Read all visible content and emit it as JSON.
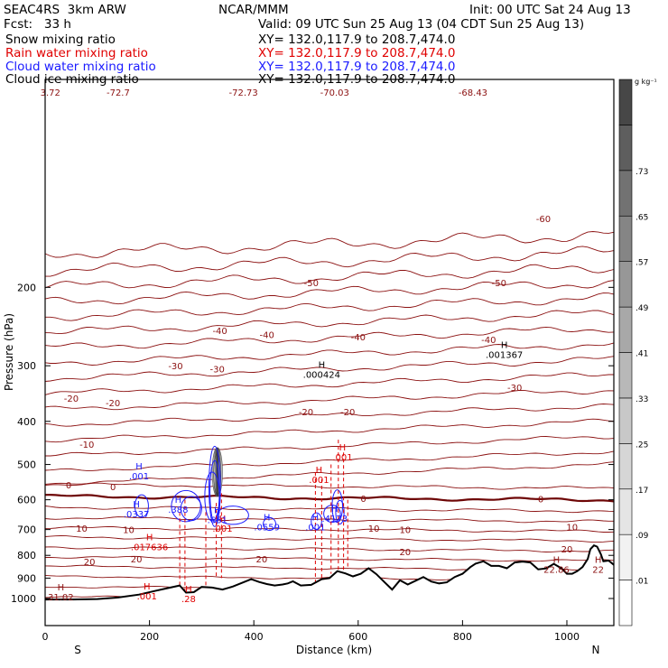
{
  "header": {
    "model": "SEAC4RS  3km ARW",
    "org": "NCAR/MMM",
    "init": "Init: 00 UTC Sat 24 Aug 13",
    "fcst": "Fcst:   33 h",
    "valid": "Valid: 09 UTC Sun 25 Aug 13 (04 CDT Sun 25 Aug 13)",
    "fields": [
      {
        "label": "Snow mixing ratio",
        "xy": "XY= 132.0,117.9 to 208.7,474.0",
        "color": "#000000"
      },
      {
        "label": "Rain water mixing ratio",
        "xy": "XY= 132.0,117.9 to 208.7,474.0",
        "color": "#e00000"
      },
      {
        "label": "Cloud water mixing ratio",
        "xy": "XY= 132.0,117.9 to 208.7,474.0",
        "color": "#1a1aff"
      },
      {
        "label": "Cloud ice mixing ratio",
        "xy": "XY= 132.0,117.9 to 208.7,474.0",
        "color": "#000000"
      }
    ]
  },
  "chart_data": {
    "type": "cross-section",
    "xlabel": "Distance (km)",
    "ylabel": "Pressure (hPa)",
    "xlim": [
      0,
      1090
    ],
    "ylim": [
      1050,
      100
    ],
    "y_log": true,
    "x_ticks": [
      "0",
      "200",
      "400",
      "600",
      "800",
      "1000"
    ],
    "y_ticks": [
      "200",
      "300",
      "400",
      "500",
      "600",
      "700",
      "800",
      "900",
      "1000"
    ],
    "ends": {
      "left": "S",
      "right": "N"
    },
    "colorbar": {
      "unit": "g kg⁻¹",
      "labels": [
        ".01",
        ".09",
        ".17",
        ".25",
        ".33",
        ".41",
        ".49",
        ".57",
        ".65",
        ".73"
      ],
      "colors": [
        "#ffffff",
        "#f2f2f2",
        "#e5e5e5",
        "#d6d6d6",
        "#c8c8c8",
        "#b8b8b8",
        "#a8a8a8",
        "#979797",
        "#858585",
        "#727272",
        "#5e5e5e",
        "#474747"
      ]
    },
    "temperature_labels": {
      "color": "#8b1010",
      "items": [
        {
          "x": 10,
          "p": 100,
          "text": "3.72"
        },
        {
          "x": 140,
          "p": 100,
          "text": "-72.7"
        },
        {
          "x": 380,
          "p": 100,
          "text": "-72.73"
        },
        {
          "x": 555,
          "p": 100,
          "text": "-70.03"
        },
        {
          "x": 820,
          "p": 100,
          "text": "-68.43"
        },
        {
          "x": 955,
          "p": 140,
          "text": "-60"
        },
        {
          "x": 510,
          "p": 195,
          "text": "-50"
        },
        {
          "x": 870,
          "p": 195,
          "text": "-50"
        },
        {
          "x": 335,
          "p": 250,
          "text": "-40"
        },
        {
          "x": 425,
          "p": 255,
          "text": "-40"
        },
        {
          "x": 600,
          "p": 258,
          "text": "-40"
        },
        {
          "x": 850,
          "p": 262,
          "text": "-40"
        },
        {
          "x": 250,
          "p": 300,
          "text": "-30"
        },
        {
          "x": 330,
          "p": 305,
          "text": "-30"
        },
        {
          "x": 900,
          "p": 335,
          "text": "-30"
        },
        {
          "x": 50,
          "p": 355,
          "text": "-20"
        },
        {
          "x": 130,
          "p": 363,
          "text": "-20"
        },
        {
          "x": 500,
          "p": 380,
          "text": "-20"
        },
        {
          "x": 580,
          "p": 380,
          "text": "-20"
        },
        {
          "x": 80,
          "p": 450,
          "text": "-10"
        },
        {
          "x": 45,
          "p": 555,
          "text": "0"
        },
        {
          "x": 130,
          "p": 560,
          "text": "0"
        },
        {
          "x": 610,
          "p": 595,
          "text": "0"
        },
        {
          "x": 950,
          "p": 597,
          "text": "0"
        },
        {
          "x": 70,
          "p": 695,
          "text": "10"
        },
        {
          "x": 160,
          "p": 700,
          "text": "10"
        },
        {
          "x": 630,
          "p": 695,
          "text": "10"
        },
        {
          "x": 690,
          "p": 700,
          "text": "10"
        },
        {
          "x": 1010,
          "p": 690,
          "text": "10"
        },
        {
          "x": 690,
          "p": 785,
          "text": "20"
        },
        {
          "x": 85,
          "p": 825,
          "text": "20"
        },
        {
          "x": 175,
          "p": 815,
          "text": "20"
        },
        {
          "x": 415,
          "p": 815,
          "text": "20"
        },
        {
          "x": 1000,
          "p": 773,
          "text": "20"
        }
      ]
    },
    "extrema": [
      {
        "x": 30,
        "p": 990,
        "text": "31.02",
        "color": "#8b1010"
      },
      {
        "x": 980,
        "p": 860,
        "text": "22.86",
        "color": "#8b1010"
      },
      {
        "x": 1060,
        "p": 860,
        "text": "22",
        "color": "#8b1010"
      },
      {
        "x": 530,
        "p": 313,
        "text": ".000424",
        "color": "#000000"
      },
      {
        "x": 880,
        "p": 283,
        "text": ".001367",
        "color": "#000000"
      },
      {
        "x": 200,
        "p": 765,
        "text": ".017636",
        "color": "#e00000"
      },
      {
        "x": 195,
        "p": 985,
        "text": ".001",
        "color": "#e00000"
      },
      {
        "x": 275,
        "p": 1000,
        "text": ".28",
        "color": "#e00000"
      },
      {
        "x": 340,
        "p": 695,
        "text": ".001",
        "color": "#e00000"
      },
      {
        "x": 525,
        "p": 540,
        "text": ".001",
        "color": "#e00000"
      },
      {
        "x": 570,
        "p": 480,
        "text": ".001",
        "color": "#e00000"
      },
      {
        "x": 180,
        "p": 530,
        "text": ".001",
        "color": "#1a1aff"
      },
      {
        "x": 175,
        "p": 645,
        "text": ".0337",
        "color": "#1a1aff"
      },
      {
        "x": 255,
        "p": 630,
        "text": ".388",
        "color": "#1a1aff"
      },
      {
        "x": 330,
        "p": 665,
        "text": ".661",
        "color": "#1a1aff"
      },
      {
        "x": 425,
        "p": 690,
        "text": ".0559",
        "color": "#1a1aff"
      },
      {
        "x": 518,
        "p": 690,
        "text": ".001",
        "color": "#1a1aff"
      },
      {
        "x": 555,
        "p": 660,
        "text": ".4173",
        "color": "#1a1aff"
      }
    ],
    "terrain_km": [
      0,
      50,
      100,
      140,
      180,
      210,
      240,
      258,
      270,
      285,
      300,
      320,
      340,
      360,
      380,
      395,
      410,
      425,
      440,
      455,
      465,
      475,
      490,
      510,
      530,
      545,
      560,
      575,
      590,
      605,
      620,
      635,
      650,
      665,
      680,
      695,
      710,
      725,
      740,
      755,
      770,
      785,
      800,
      815,
      825,
      840,
      855,
      870,
      885,
      900,
      915,
      930,
      945,
      960,
      975,
      990,
      1000,
      1010,
      1020,
      1030,
      1040,
      1045,
      1052,
      1058,
      1065,
      1070,
      1080,
      1090
    ],
    "terrain_hpa": [
      1005,
      1005,
      1003,
      995,
      980,
      962,
      945,
      935,
      970,
      968,
      942,
      945,
      955,
      940,
      920,
      905,
      918,
      928,
      935,
      930,
      925,
      915,
      935,
      932,
      905,
      900,
      868,
      878,
      892,
      880,
      855,
      882,
      918,
      955,
      910,
      930,
      912,
      895,
      916,
      925,
      920,
      895,
      880,
      850,
      835,
      825,
      845,
      845,
      855,
      830,
      826,
      830,
      860,
      856,
      836,
      856,
      880,
      880,
      868,
      850,
      815,
      775,
      760,
      765,
      795,
      825,
      822,
      840
    ]
  }
}
